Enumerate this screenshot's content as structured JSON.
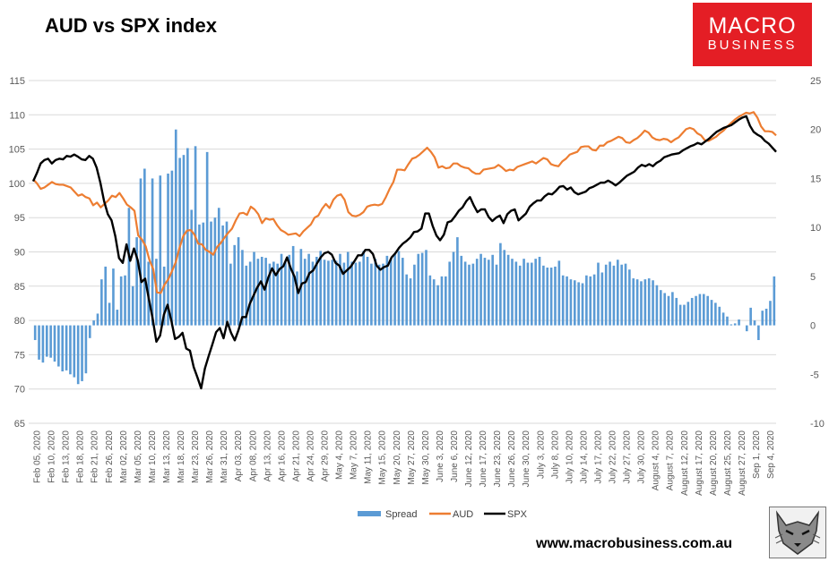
{
  "title": "AUD vs SPX index",
  "logo": {
    "line1": "MACRO",
    "line2": "BUSINESS",
    "color": "#e41e25"
  },
  "website": "www.macrobusiness.com.au",
  "chart_data": {
    "type": "line",
    "title": "AUD vs SPX index",
    "left_axis": {
      "min": 65,
      "max": 115,
      "step": 5,
      "ticks": [
        "65",
        "70",
        "75",
        "80",
        "85",
        "90",
        "95",
        "100",
        "105",
        "110",
        "115"
      ]
    },
    "right_axis": {
      "min": -10,
      "max": 25,
      "step": 5,
      "ticks": [
        "-10",
        "-5",
        "0",
        "5",
        "10",
        "15",
        "20",
        "25"
      ]
    },
    "x_tick_labels": [
      "Feb 05, 2020",
      "Feb 10, 2020",
      "Feb 13, 2020",
      "Feb 18, 2020",
      "Feb 21, 2020",
      "Feb 26, 2020",
      "Mar 02, 2020",
      "Mar 05, 2020",
      "Mar 10, 2020",
      "Mar 13, 2020",
      "Mar 18, 2020",
      "Mar 23, 2020",
      "Mar 26, 2020",
      "Mar 31, 2020",
      "Apr 03, 2020",
      "Apr 08, 2020",
      "Apr 13, 2020",
      "Apr 16, 2020",
      "Apr 21, 2020",
      "Apr 24, 2020",
      "Apr 29, 2020",
      "May 4, 2020",
      "May 7, 2020",
      "May 11, 2020",
      "May 15, 2020",
      "May 20, 2020",
      "May 27, 2020",
      "May 30, 2020",
      "June 3, 2020",
      "June 6, 2020",
      "June 12, 2020",
      "June 17, 2020",
      "June 23, 2020",
      "June 26, 2020",
      "June 30, 2020",
      "July 3, 2020",
      "July 8, 2020",
      "July 10, 2020",
      "July 14, 2020",
      "July 17, 2020",
      "July 22, 2020",
      "July 27, 2020",
      "July 30, 2020",
      "August 4, 2020",
      "August 7, 2020",
      "August 12, 2020",
      "August 17, 2020",
      "August 20, 2020",
      "August 25, 2020",
      "August 27, 2020",
      "Sep 1, 2020",
      "Sep 4, 2020"
    ],
    "legend": [
      "Spread",
      "AUD",
      "SPX"
    ],
    "legend_position": "bottom",
    "colors": {
      "spread": "#5b9bd5",
      "aud": "#ed7d31",
      "spx": "#000000",
      "grid": "#d9d9d9",
      "axis_text": "#595959"
    },
    "series": [
      {
        "name": "Spread",
        "axis": "right",
        "type": "bar",
        "values": [
          -1.5,
          -3.5,
          -3.8,
          -3.2,
          -3.3,
          -3.7,
          -4.2,
          -4.7,
          -4.6,
          -5.0,
          -5.3,
          -6.0,
          -5.7,
          -4.9,
          -1.3,
          0.5,
          1.2,
          4.7,
          6.0,
          2.3,
          5.8,
          1.6,
          5.0,
          5.1,
          12.0,
          4.0,
          9.0,
          15.0,
          16.0,
          6.5,
          15.0,
          6.8,
          15.3,
          6.0,
          15.5,
          15.8,
          20.0,
          17.1,
          17.4,
          18.1,
          11.8,
          18.3,
          10.3,
          10.5,
          17.7,
          10.6,
          11.0,
          12.0,
          10.2,
          10.6,
          6.3,
          8.2,
          9.0,
          7.7,
          6.1,
          6.5,
          7.5,
          6.8,
          7.0,
          6.9,
          6.3,
          6.5,
          6.3,
          7.3,
          6.5,
          7.2,
          8.1,
          5.5,
          7.8,
          6.8,
          7.3,
          6.5,
          7.0,
          7.6,
          6.7,
          6.6,
          6.7,
          6.6,
          7.3,
          6.4,
          7.5,
          6.5,
          6.4,
          6.5,
          7.6,
          7.0,
          6.3,
          6.8,
          6.2,
          6.3,
          7.1,
          6.8,
          7.3,
          7.6,
          6.9,
          5.2,
          4.8,
          6.2,
          7.3,
          7.4,
          7.7,
          5.1,
          4.7,
          4.1,
          5.0,
          5.0,
          6.5,
          7.5,
          9.0,
          7.1,
          6.5,
          6.2,
          6.3,
          6.8,
          7.3,
          6.9,
          6.7,
          7.2,
          6.2,
          8.4,
          7.7,
          7.2,
          6.8,
          6.5,
          6.1,
          6.8,
          6.4,
          6.4,
          6.8,
          7.0,
          6.1,
          5.9,
          5.9,
          6.0,
          6.6,
          5.1,
          5.0,
          4.7,
          4.6,
          4.4,
          4.3,
          5.1,
          5.0,
          5.2,
          6.4,
          5.4,
          6.2,
          6.5,
          6.1,
          6.7,
          6.2,
          6.3,
          5.7,
          4.8,
          4.7,
          4.5,
          4.7,
          4.8,
          4.6,
          4.1,
          3.6,
          3.3,
          3.0,
          3.4,
          2.8,
          2.1,
          2.1,
          2.4,
          2.8,
          3.0,
          3.2,
          3.2,
          3.0,
          2.6,
          2.3,
          1.9,
          1.3,
          0.9,
          0.1,
          0.2,
          0.6,
          0.0,
          -0.6,
          1.8,
          0.5,
          -1.5,
          1.5,
          1.7,
          2.5,
          5.0
        ]
      },
      {
        "name": "AUD",
        "axis": "left",
        "type": "line",
        "values": [
          100.6,
          100.0,
          99.2,
          99.4,
          99.8,
          100.2,
          99.9,
          99.8,
          99.8,
          99.6,
          99.4,
          98.8,
          98.2,
          98.4,
          98.0,
          97.8,
          96.8,
          97.2,
          96.5,
          97.0,
          97.5,
          98.2,
          98.0,
          98.6,
          97.8,
          96.9,
          96.5,
          96.0,
          92.4,
          91.8,
          90.8,
          88.8,
          87.5,
          84.1,
          84.0,
          85.2,
          86.0,
          87.2,
          88.5,
          90.6,
          92.3,
          93.1,
          93.2,
          92.5,
          91.2,
          91.1,
          90.3,
          90.0,
          89.6,
          90.7,
          91.3,
          92.1,
          92.8,
          93.4,
          94.6,
          95.6,
          95.7,
          95.4,
          96.6,
          96.2,
          95.5,
          94.2,
          94.9,
          94.7,
          94.8,
          93.9,
          93.2,
          92.9,
          92.5,
          92.6,
          92.7,
          92.3,
          93.0,
          93.5,
          94.0,
          95.0,
          95.3,
          96.3,
          97.0,
          96.4,
          97.6,
          98.2,
          98.4,
          97.6,
          95.8,
          95.3,
          95.2,
          95.4,
          95.8,
          96.6,
          96.8,
          96.9,
          96.8,
          97.0,
          98.0,
          99.2,
          100.2,
          102.0,
          102.0,
          101.9,
          102.8,
          103.6,
          103.8,
          104.2,
          104.7,
          105.2,
          104.6,
          103.8,
          102.3,
          102.5,
          102.2,
          102.3,
          102.9,
          102.9,
          102.5,
          102.3,
          102.2,
          101.7,
          101.4,
          101.4,
          102.0,
          102.1,
          102.2,
          102.3,
          102.7,
          102.3,
          101.8,
          102.0,
          101.9,
          102.4,
          102.6,
          102.8,
          103.0,
          103.2,
          102.9,
          103.3,
          103.7,
          103.5,
          102.8,
          102.6,
          102.5,
          103.2,
          103.6,
          104.2,
          104.4,
          104.6,
          105.3,
          105.4,
          105.4,
          104.9,
          104.8,
          105.5,
          105.5,
          106.0,
          106.2,
          106.5,
          106.8,
          106.6,
          106.0,
          105.9,
          106.3,
          106.6,
          107.1,
          107.7,
          107.4,
          106.7,
          106.4,
          106.3,
          106.5,
          106.4,
          106.0,
          106.4,
          106.7,
          107.3,
          107.9,
          108.1,
          107.9,
          107.3,
          107.0,
          106.3,
          106.2,
          106.5,
          106.8,
          107.3,
          107.7,
          108.3,
          108.8,
          109.3,
          109.7,
          110.0,
          110.3,
          110.2,
          110.4,
          109.6,
          108.3,
          107.6,
          107.6,
          107.5,
          107.0
        ]
      },
      {
        "name": "SPX",
        "axis": "left",
        "type": "line",
        "values": [
          100.3,
          101.5,
          102.9,
          103.4,
          103.6,
          102.9,
          103.4,
          103.6,
          103.5,
          104.0,
          103.9,
          104.2,
          103.9,
          103.5,
          103.4,
          104.0,
          103.6,
          102.3,
          100.1,
          97.4,
          95.5,
          94.6,
          92.3,
          89.1,
          88.4,
          91.1,
          88.7,
          90.5,
          88.8,
          85.6,
          86.1,
          83.1,
          80.3,
          76.9,
          77.8,
          80.8,
          82.3,
          80.0,
          77.3,
          77.6,
          78.2,
          75.9,
          75.6,
          73.2,
          71.7,
          70.1,
          73.0,
          74.8,
          76.5,
          78.3,
          78.9,
          77.4,
          79.8,
          78.2,
          77.1,
          78.6,
          80.5,
          80.5,
          82.4,
          83.6,
          84.8,
          85.7,
          84.5,
          86.3,
          87.6,
          86.6,
          87.5,
          87.9,
          89.2,
          87.6,
          86.4,
          84.0,
          85.4,
          85.6,
          86.9,
          87.3,
          88.3,
          89.2,
          89.8,
          90.0,
          89.6,
          88.4,
          88.0,
          86.8,
          87.3,
          87.8,
          88.6,
          89.5,
          89.5,
          90.3,
          90.3,
          89.7,
          88.0,
          87.4,
          87.8,
          88.0,
          89.2,
          89.8,
          90.6,
          91.2,
          91.6,
          92.1,
          92.9,
          93.0,
          93.4,
          95.6,
          95.6,
          93.8,
          92.4,
          91.7,
          92.5,
          94.3,
          94.5,
          95.2,
          96.0,
          96.5,
          97.4,
          98.0,
          96.8,
          95.8,
          96.2,
          96.2,
          95.1,
          94.5,
          95.0,
          95.3,
          94.2,
          95.5,
          96.0,
          96.2,
          94.6,
          95.1,
          95.6,
          96.6,
          97.1,
          97.5,
          97.5,
          98.1,
          98.5,
          98.4,
          98.9,
          99.5,
          99.6,
          99.1,
          99.4,
          98.7,
          98.4,
          98.6,
          98.8,
          99.3,
          99.5,
          99.8,
          100.1,
          100.1,
          100.4,
          100.1,
          99.7,
          100.1,
          100.6,
          101.1,
          101.4,
          101.7,
          102.3,
          102.7,
          102.5,
          102.8,
          102.5,
          103.0,
          103.3,
          103.8,
          104.0,
          104.2,
          104.3,
          104.4,
          104.8,
          105.1,
          105.4,
          105.6,
          105.9,
          105.7,
          106.1,
          106.5,
          107.0,
          107.5,
          107.8,
          108.1,
          108.3,
          108.5,
          108.9,
          109.3,
          109.6,
          109.8,
          108.4,
          107.5,
          107.1,
          106.8,
          106.2,
          105.8,
          105.2,
          104.6
        ]
      }
    ]
  }
}
